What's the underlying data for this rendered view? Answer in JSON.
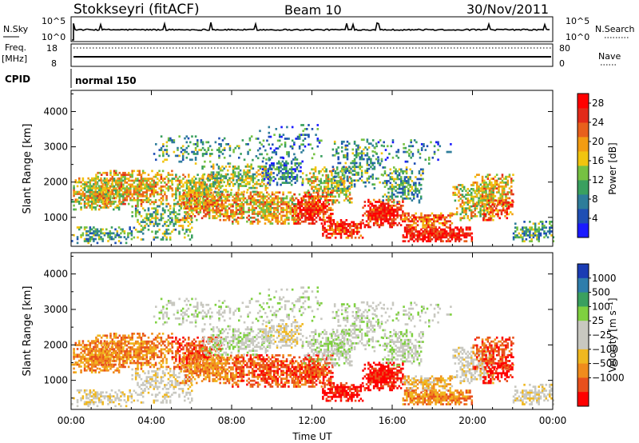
{
  "header": {
    "station": "Stokkseyri (fitACF)",
    "beam": "Beam 10",
    "date": "30/Nov/2011"
  },
  "top_panels": {
    "nsky": {
      "left_label": "N.Sky",
      "right_label": "N.Search",
      "left_ticks": [
        "10^5",
        "10^0"
      ],
      "right_ticks": [
        "10^5",
        "10^0"
      ]
    },
    "freq": {
      "left_label_1": "Freq.",
      "left_label_2": "[MHz]",
      "right_label": "Nave",
      "left_ticks": [
        "18",
        "8"
      ],
      "right_ticks": [
        "80",
        "0"
      ]
    },
    "cpid": {
      "label": "CPID",
      "value": "normal 150"
    }
  },
  "colors": {
    "power_scale": [
      "#1a1aff",
      "#1f4fb4",
      "#2e7d9a",
      "#3aa05f",
      "#76c142",
      "#f1c40f",
      "#f39c12",
      "#e8601c",
      "#e22b1a",
      "#ff0000"
    ],
    "velocity_scale": [
      "#ff0000",
      "#e8501c",
      "#f08c1c",
      "#f0b820",
      "#c8c8c0",
      "#c8c8c0",
      "#7fd040",
      "#3aa05f",
      "#2e7dab",
      "#1a3cb4"
    ]
  },
  "chart_data": [
    {
      "type": "heatmap",
      "name": "power",
      "ylabel": "Slant Range [km]",
      "xlabel": "",
      "ylim": [
        180,
        4600
      ],
      "xlim": [
        0,
        24
      ],
      "y_ticks": [
        "1000",
        "2000",
        "3000",
        "4000"
      ],
      "colorbar_label": "Power [dB]",
      "colorbar_ticks": [
        "4",
        "8",
        "12",
        "16",
        "20",
        "24",
        "28"
      ],
      "colorbar_range": [
        0,
        30
      ]
    },
    {
      "type": "heatmap",
      "name": "velocity",
      "ylabel": "Slant Range [km]",
      "xlabel": "Time UT",
      "ylim": [
        180,
        4600
      ],
      "xlim": [
        0,
        24
      ],
      "x_ticks": [
        "00:00",
        "04:00",
        "08:00",
        "12:00",
        "16:00",
        "20:00",
        "00:00"
      ],
      "y_ticks": [
        "1000",
        "2000",
        "3000",
        "4000"
      ],
      "colorbar_label": "Velocity [m s⁻¹]",
      "colorbar_ticks": [
        "1000",
        "500",
        "100",
        "25",
        "−25",
        "−100",
        "−500",
        "−1000"
      ]
    }
  ]
}
